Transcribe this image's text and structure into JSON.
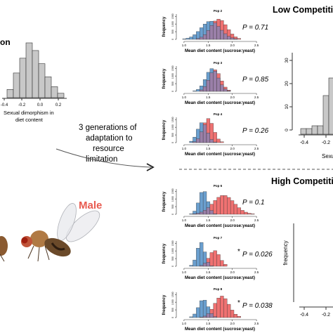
{
  "left_panel": {
    "title_fragment": "on",
    "histogram": {
      "x_ticks": [
        "-0.4",
        "-0.2",
        "0.0",
        "0.2"
      ],
      "xlabel_line1": "Sexual dimorphism in",
      "xlabel_line2": "diet content",
      "bar_fractions": [
        0.15,
        0.45,
        0.72,
        1.0,
        0.86,
        0.62,
        0.38,
        0.2,
        0.08
      ]
    }
  },
  "arrow_text": [
    "3 generations of",
    "adaptation to",
    "resource",
    "limitation"
  ],
  "male_label": "Male",
  "colors": {
    "blue": "#6a9fcf",
    "red": "#ef7171",
    "overlap": "#9a7fa8",
    "male": "#e85a4f",
    "gray": "#c8c8c8"
  },
  "section_titles": {
    "low": "Low Competitio",
    "high": "High Competitie"
  },
  "small_panels": [
    {
      "pop": "Pop 2",
      "p_value": "P = 0.71",
      "star": "",
      "ylabel": "frequency",
      "xlabel": "Mean diet content (sucrose:yeast)",
      "x_ticks": [
        "1.0",
        "1.5",
        "2.0",
        "2.5"
      ],
      "y_ticks": [
        "0",
        "500",
        "1000",
        "1500"
      ],
      "blue": {
        "mean": 1.55,
        "sd": 0.2,
        "height": 0.72
      },
      "red": {
        "mean": 1.72,
        "sd": 0.17,
        "height": 0.8
      }
    },
    {
      "pop": "Pop 3",
      "p_value": "P = 0.85",
      "star": "",
      "ylabel": "frequency",
      "xlabel": "Mean diet content (sucrose:yeast)",
      "x_ticks": [
        "1.0",
        "1.5",
        "2.0",
        "2.5"
      ],
      "y_ticks": [
        "0",
        "500",
        "1000",
        "1500"
      ],
      "blue": {
        "mean": 1.58,
        "sd": 0.13,
        "height": 0.9
      },
      "red": {
        "mean": 1.64,
        "sd": 0.12,
        "height": 0.85
      }
    },
    {
      "pop": "Pop 4",
      "p_value": "P = 0.26",
      "star": "",
      "ylabel": "frequency",
      "xlabel": "Mean diet content (sucrose:yeast)",
      "x_ticks": [
        "1.0",
        "1.5",
        "2.0",
        "2.5"
      ],
      "y_ticks": [
        "0",
        "500",
        "1000",
        "1500"
      ],
      "blue": {
        "mean": 1.38,
        "sd": 0.1,
        "height": 0.8
      },
      "red": {
        "mean": 1.5,
        "sd": 0.11,
        "height": 0.95
      }
    },
    {
      "pop": "Pop 6",
      "p_value": "P = 0.1",
      "star": "",
      "ylabel": "frequency",
      "xlabel": "Mean diet content (sucrose:yeast)",
      "x_ticks": [
        "1.0",
        "1.5",
        "2.0",
        "2.5"
      ],
      "y_ticks": [
        "0",
        "500",
        "1000",
        "1500"
      ],
      "blue": {
        "mean": 1.4,
        "sd": 0.09,
        "height": 0.95
      },
      "red": {
        "mean": 1.82,
        "sd": 0.22,
        "height": 0.75
      }
    },
    {
      "pop": "Pop 7",
      "p_value": "P = 0.026",
      "star": "*",
      "ylabel": "frequency",
      "xlabel": "Mean diet content (sucrose:yeast)",
      "x_ticks": [
        "1.0",
        "1.5",
        "2.0",
        "2.5"
      ],
      "y_ticks": [
        "0",
        "500",
        "1000",
        "1500"
      ],
      "blue": {
        "mean": 1.35,
        "sd": 0.08,
        "height": 0.95
      },
      "red": {
        "mean": 1.63,
        "sd": 0.11,
        "height": 0.62
      }
    },
    {
      "pop": "Pop 8",
      "p_value": "P = 0.038",
      "star": "*",
      "ylabel": "frequency",
      "xlabel": "Mean diet content (sucrose:yeast)",
      "x_ticks": [
        "1.0",
        "1.5",
        "2.0",
        "2.5"
      ],
      "y_ticks": [
        "0",
        "500",
        "1000",
        "1500"
      ],
      "blue": {
        "mean": 1.4,
        "sd": 0.1,
        "height": 0.72
      },
      "red": {
        "mean": 1.78,
        "sd": 0.15,
        "height": 0.85
      }
    }
  ],
  "right_upper": {
    "x_ticks": [
      "-0.4",
      "-0.2"
    ],
    "y_ticks": [
      "0",
      "10",
      "20",
      "30"
    ],
    "xlabel": "Sexu",
    "bar_fractions": [
      0.08,
      0.08,
      0.12,
      0.12,
      0.55,
      0.8
    ]
  },
  "right_lower": {
    "ylabel": "frequency",
    "x_ticks": [
      "-0.4",
      "-0.2"
    ]
  }
}
